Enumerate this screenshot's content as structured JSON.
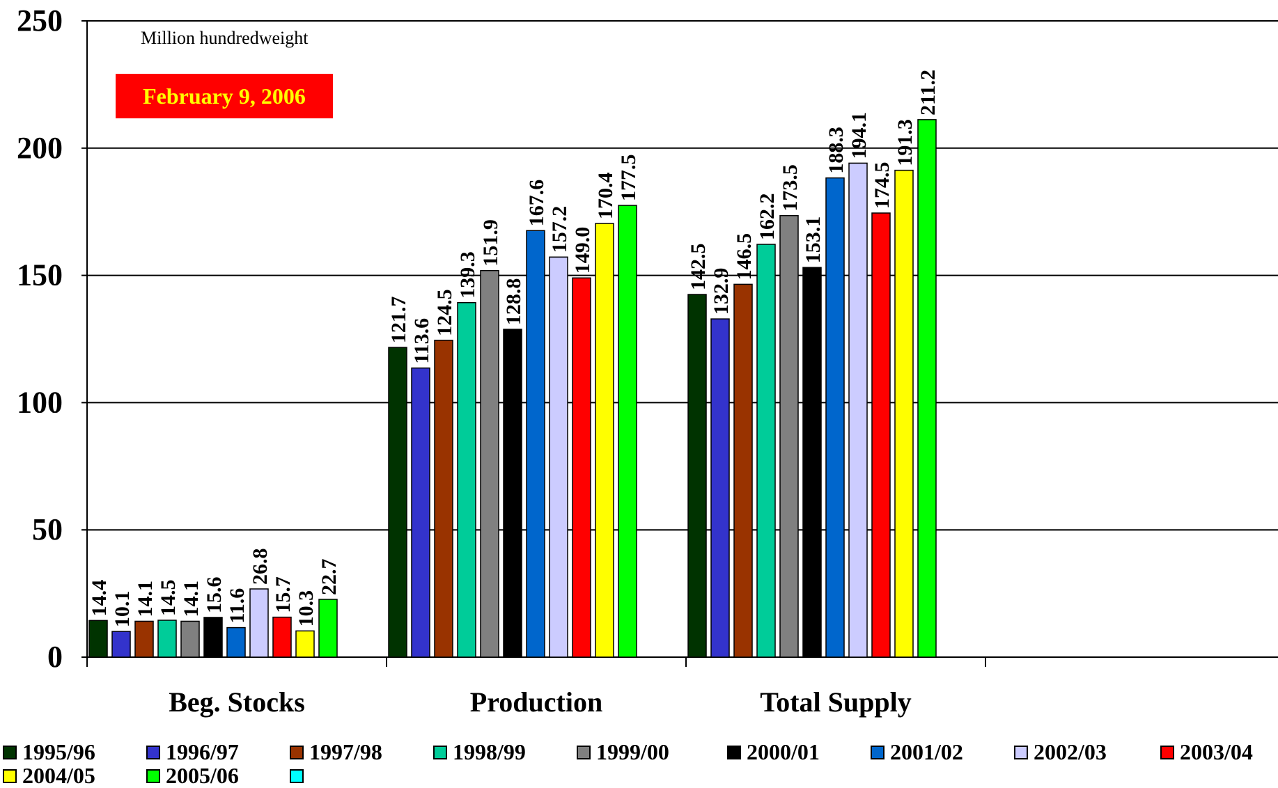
{
  "chart_data": {
    "type": "bar",
    "unit_note": "Million hundredweight",
    "date_badge": "February 9, 2006",
    "categories": [
      "Beg. Stocks",
      "Production",
      "Total Supply"
    ],
    "ylim": [
      0,
      250
    ],
    "yticks": [
      0,
      50,
      100,
      150,
      200,
      250
    ],
    "grid": true,
    "legend_position": "bottom",
    "series": [
      {
        "name": "1995/96",
        "color": "#003300",
        "values": [
          14.4,
          121.7,
          142.5
        ]
      },
      {
        "name": "1996/97",
        "color": "#3333CC",
        "values": [
          10.1,
          113.6,
          132.9
        ]
      },
      {
        "name": "1997/98",
        "color": "#993300",
        "values": [
          14.1,
          124.5,
          146.5
        ]
      },
      {
        "name": "1998/99",
        "color": "#00CC99",
        "values": [
          14.5,
          139.3,
          162.2
        ]
      },
      {
        "name": "1999/00",
        "color": "#808080",
        "values": [
          14.1,
          151.9,
          173.5
        ]
      },
      {
        "name": "2000/01",
        "color": "#000000",
        "values": [
          15.6,
          128.8,
          153.1
        ]
      },
      {
        "name": "2001/02",
        "color": "#0066CC",
        "values": [
          11.6,
          167.6,
          188.3
        ]
      },
      {
        "name": "2002/03",
        "color": "#CCCCFF",
        "values": [
          26.8,
          157.2,
          194.1
        ]
      },
      {
        "name": "2003/04",
        "color": "#FF0000",
        "values": [
          15.7,
          149.0,
          174.5
        ]
      },
      {
        "name": "2004/05",
        "color": "#FFFF00",
        "values": [
          10.3,
          170.4,
          191.3
        ]
      },
      {
        "name": "2005/06",
        "color": "#00FF00",
        "values": [
          22.7,
          177.5,
          211.2
        ]
      }
    ],
    "empty_legend_swatch_color": "#00FFFF",
    "value_labels": [
      [
        "14.4",
        "121.7",
        "142.5"
      ],
      [
        "10.1",
        "113.6",
        "132.9"
      ],
      [
        "14.1",
        "124.5",
        "146.5"
      ],
      [
        "14.5",
        "139.3",
        "162.2"
      ],
      [
        "14.1",
        "151.9",
        "173.5"
      ],
      [
        "15.6",
        "128.8",
        "153.1"
      ],
      [
        "11.6",
        "167.6",
        "188.3"
      ],
      [
        "26.8",
        "157.2",
        "194.1"
      ],
      [
        "15.7",
        "149.0",
        "174.5"
      ],
      [
        "10.3",
        "170.4",
        "191.3"
      ],
      [
        "22.7",
        "177.5",
        "211.2"
      ]
    ],
    "badge_colors": {
      "background": "#FF0000",
      "text": "#FFFF00"
    }
  }
}
